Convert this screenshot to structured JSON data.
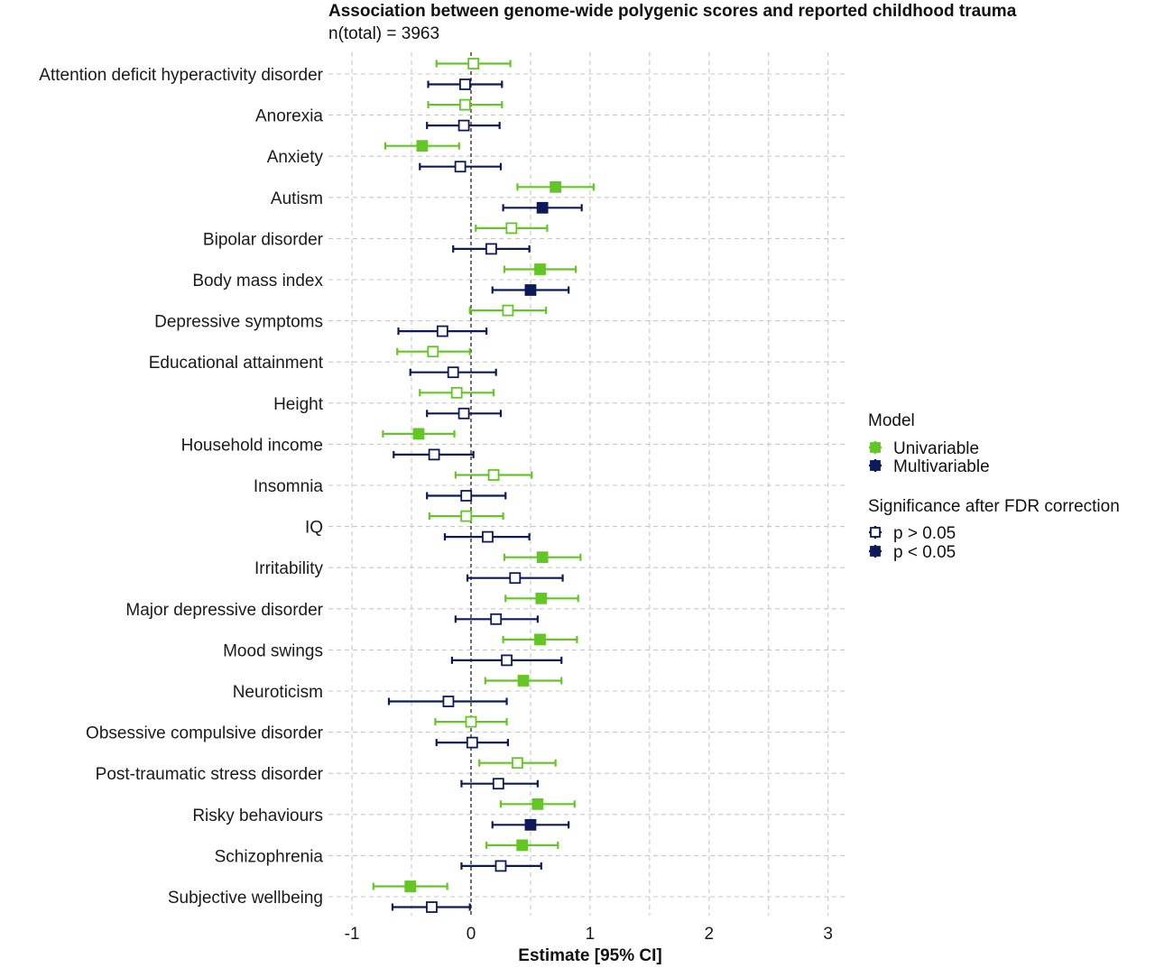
{
  "chart_data": {
    "type": "forest",
    "title": "Association between genome-wide polygenic scores and reported childhood trauma",
    "subtitle": "n(total) =  3963",
    "xlabel": "Estimate [95% CI]",
    "xlim": [
      -1.0,
      3.15
    ],
    "xticks": [
      "-1",
      "0",
      "1",
      "2",
      "3"
    ],
    "xtick_values": [
      -1,
      0,
      1,
      2,
      3
    ],
    "reference_line": 0,
    "grid": true,
    "legend_placement": "right",
    "colors": {
      "Univariable": "#63c624",
      "Multivariable": "#0c1a5a"
    },
    "legend": {
      "model_title": "Model",
      "model_entries": [
        "Univariable",
        "Multivariable"
      ],
      "significance_title": "Significance after FDR correction",
      "significance_entries": [
        "p > 0.05",
        "p < 0.05"
      ]
    },
    "categories": [
      "Attention deficit hyperactivity disorder",
      "Anorexia",
      "Anxiety",
      "Autism",
      "Bipolar disorder",
      "Body mass index",
      "Depressive symptoms",
      "Educational attainment",
      "Height",
      "Household income",
      "Insomnia",
      "IQ",
      "Irritability",
      "Major depressive disorder",
      "Mood swings",
      "Neuroticism",
      "Obsessive compulsive disorder",
      "Post-traumatic stress disorder",
      "Risky behaviours",
      "Schizophrenia",
      "Subjective wellbeing"
    ],
    "series": [
      {
        "name": "Univariable",
        "estimates": [
          0.02,
          -0.05,
          -0.41,
          0.71,
          0.34,
          0.58,
          0.31,
          -0.32,
          -0.12,
          -0.44,
          0.19,
          -0.04,
          0.6,
          0.59,
          0.58,
          0.44,
          0.0,
          0.39,
          0.56,
          0.43,
          -0.51
        ],
        "lower": [
          -0.29,
          -0.36,
          -0.72,
          0.39,
          0.04,
          0.28,
          -0.01,
          -0.62,
          -0.43,
          -0.74,
          -0.13,
          -0.35,
          0.28,
          0.29,
          0.27,
          0.12,
          -0.3,
          0.07,
          0.25,
          0.13,
          -0.82
        ],
        "upper": [
          0.33,
          0.26,
          -0.1,
          1.03,
          0.64,
          0.88,
          0.63,
          -0.01,
          0.19,
          -0.14,
          0.51,
          0.27,
          0.92,
          0.9,
          0.89,
          0.76,
          0.3,
          0.71,
          0.87,
          0.73,
          -0.2
        ],
        "significant": [
          false,
          false,
          true,
          true,
          false,
          true,
          false,
          false,
          false,
          true,
          false,
          false,
          true,
          true,
          true,
          true,
          false,
          false,
          true,
          true,
          true
        ]
      },
      {
        "name": "Multivariable",
        "estimates": [
          -0.05,
          -0.06,
          -0.09,
          0.6,
          0.17,
          0.5,
          -0.24,
          -0.15,
          -0.06,
          -0.31,
          -0.04,
          0.14,
          0.37,
          0.21,
          0.3,
          -0.19,
          0.01,
          0.23,
          0.5,
          0.25,
          -0.33
        ],
        "lower": [
          -0.36,
          -0.37,
          -0.43,
          0.27,
          -0.15,
          0.18,
          -0.61,
          -0.51,
          -0.37,
          -0.65,
          -0.37,
          -0.22,
          -0.03,
          -0.13,
          -0.16,
          -0.69,
          -0.29,
          -0.08,
          0.18,
          -0.08,
          -0.66
        ],
        "upper": [
          0.26,
          0.24,
          0.25,
          0.93,
          0.49,
          0.82,
          0.13,
          0.21,
          0.25,
          0.02,
          0.29,
          0.49,
          0.77,
          0.56,
          0.76,
          0.3,
          0.31,
          0.56,
          0.82,
          0.59,
          -0.01
        ],
        "significant": [
          false,
          false,
          false,
          true,
          false,
          true,
          false,
          false,
          false,
          false,
          false,
          false,
          false,
          false,
          false,
          false,
          false,
          false,
          true,
          false,
          false
        ]
      }
    ]
  }
}
